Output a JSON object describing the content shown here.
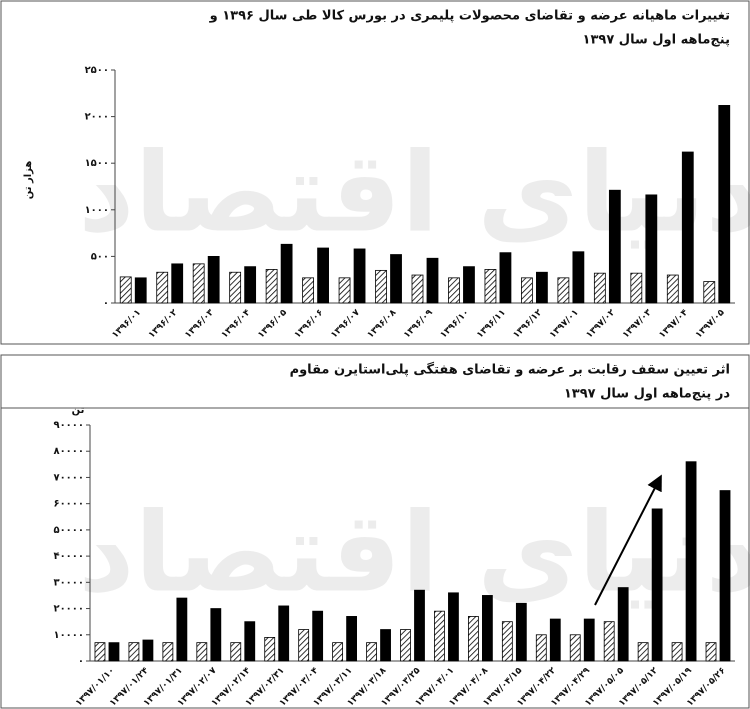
{
  "chart_data": [
    {
      "type": "bar",
      "title": [
        "تغییرات ماهیانه عرضه و تقاضای محصولات پلیمری در بورس کالا طی سال ۱۳۹۶ و",
        "پنج‌ماهه اول سال ۱۳۹۷"
      ],
      "y_label": "هزار تن",
      "watermark": "دنیای اقتصاد",
      "categories": [
        "۱۳۹۶/۰۱",
        "۱۳۹۶/۰۲",
        "۱۳۹۶/۰۳",
        "۱۳۹۶/۰۴",
        "۱۳۹۶/۰۵",
        "۱۳۹۶/۰۶",
        "۱۳۹۶/۰۷",
        "۱۳۹۶/۰۸",
        "۱۳۹۶/۰۹",
        "۱۳۹۶/۱۰",
        "۱۳۹۶/۱۱",
        "۱۳۹۶/۱۲",
        "۱۳۹۷/۰۱",
        "۱۳۹۷/۰۲",
        "۱۳۹۷/۰۳",
        "۱۳۹۷/۰۴",
        "۱۳۹۷/۰۵"
      ],
      "series": [
        {
          "color": "#000000",
          "hatch": true,
          "values": [
            280,
            330,
            420,
            330,
            360,
            270,
            270,
            350,
            300,
            270,
            360,
            270,
            270,
            320,
            320,
            300,
            230
          ]
        },
        {
          "color": "#000000",
          "hatch": false,
          "values": [
            270,
            420,
            500,
            390,
            630,
            590,
            580,
            520,
            480,
            390,
            540,
            330,
            550,
            1210,
            1160,
            1620,
            2120
          ]
        }
      ],
      "ylim": [
        0,
        2500
      ],
      "yticks": [
        {
          "value": 0,
          "label": "۰"
        },
        {
          "value": 500,
          "label": "۵۰۰"
        },
        {
          "value": 1000,
          "label": "۱۰۰۰"
        },
        {
          "value": 1500,
          "label": "۱۵۰۰"
        },
        {
          "value": 2000,
          "label": "۲۰۰۰"
        },
        {
          "value": 2500,
          "label": "۲۵۰۰"
        }
      ],
      "grid": false
    },
    {
      "type": "bar",
      "title": [
        "اثر تعیین سقف رقابت بر عرضه و تقاضای هفتگی پلی‌استایرن مقاوم",
        "در پنج‌ماهه اول سال ۱۳۹۷"
      ],
      "y_label": "تن",
      "watermark": "دنیای اقتصاد",
      "categories": [
        "۱۳۹۷/۰۱/۱۰",
        "۱۳۹۷/۰۱/۲۴",
        "۱۳۹۷/۰۱/۳۱",
        "۱۳۹۷/۰۲/۰۷",
        "۱۳۹۷/۰۲/۱۴",
        "۱۳۹۷/۰۲/۳۱",
        "۱۳۹۷/۰۳/۰۴",
        "۱۳۹۷/۰۳/۱۱",
        "۱۳۹۷/۰۳/۱۸",
        "۱۳۹۷/۰۳/۲۵",
        "۱۳۹۷/۰۴/۰۱",
        "۱۳۹۷/۰۴/۰۸",
        "۱۳۹۷/۰۴/۱۵",
        "۱۳۹۷/۰۴/۲۲",
        "۱۳۹۷/۰۴/۲۹",
        "۱۳۹۷/۰۵/۰۵",
        "۱۳۹۷/۰۵/۱۲",
        "۱۳۹۷/۰۵/۱۹",
        "۱۳۹۷/۰۵/۲۶"
      ],
      "series": [
        {
          "color": "#000000",
          "hatch": true,
          "values": [
            7000,
            7000,
            7000,
            7000,
            7000,
            9000,
            12000,
            7000,
            7000,
            12000,
            19000,
            17000,
            15000,
            10000,
            10000,
            15000,
            7000,
            7000,
            7000
          ]
        },
        {
          "color": "#000000",
          "hatch": false,
          "values": [
            7000,
            8000,
            24000,
            20000,
            15000,
            21000,
            19000,
            17000,
            12000,
            27000,
            26000,
            25000,
            22000,
            16000,
            16000,
            28000,
            58000,
            76000,
            65000
          ]
        }
      ],
      "ylim": [
        0,
        90000
      ],
      "yticks": [
        {
          "value": 0,
          "label": "۰"
        },
        {
          "value": 10000,
          "label": "۱۰۰۰۰"
        },
        {
          "value": 20000,
          "label": "۲۰۰۰۰"
        },
        {
          "value": 30000,
          "label": "۳۰۰۰۰"
        },
        {
          "value": 40000,
          "label": "۴۰۰۰۰"
        },
        {
          "value": 50000,
          "label": "۵۰۰۰۰"
        },
        {
          "value": 60000,
          "label": "۶۰۰۰۰"
        },
        {
          "value": 70000,
          "label": "۷۰۰۰۰"
        },
        {
          "value": 80000,
          "label": "۸۰۰۰۰"
        },
        {
          "value": 90000,
          "label": "۹۰۰۰۰"
        }
      ],
      "grid": false
    }
  ]
}
